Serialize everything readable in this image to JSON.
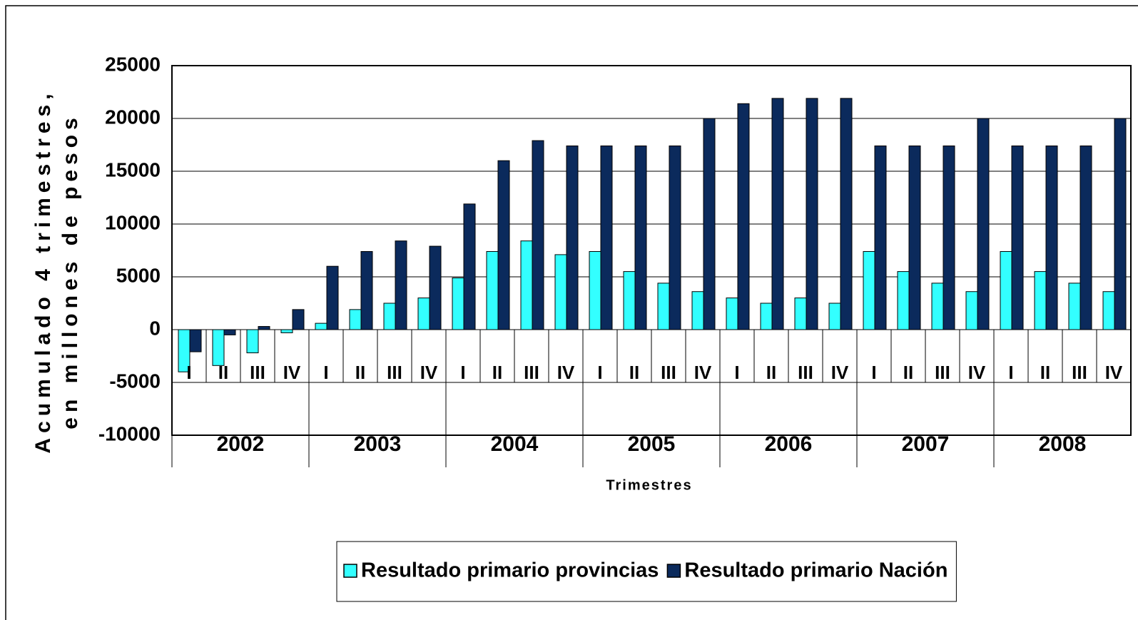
{
  "chart_data": {
    "type": "bar",
    "y_label": [
      "Acumulado 4 trimestres,",
      "en millones de pesos"
    ],
    "x_label": "Trimestres",
    "categories": [
      "I",
      "II",
      "III",
      "IV",
      "I",
      "II",
      "III",
      "IV",
      "I",
      "II",
      "III",
      "IV",
      "I",
      "II",
      "III",
      "IV",
      "I",
      "II",
      "III",
      "IV",
      "I",
      "II",
      "III",
      "IV",
      "I",
      "II",
      "III",
      "IV"
    ],
    "groups": [
      "2002",
      "2003",
      "2004",
      "2005",
      "2006",
      "2007",
      "2008"
    ],
    "series": [
      {
        "name": "Resultado primario provincias",
        "color": "#33ffff",
        "values": [
          -4000,
          -3400,
          -2200,
          -300,
          600,
          1900,
          2500,
          3000,
          4900,
          7400,
          8400,
          7100,
          7400,
          5500,
          4400,
          3600,
          3000,
          2500,
          3000,
          2500,
          7400,
          5500,
          4400,
          3600,
          7400,
          5500,
          4400,
          3600
        ]
      },
      {
        "name": "Resultado primario Nación",
        "color": "#0b2a5c",
        "values": [
          -2100,
          -500,
          300,
          1900,
          6000,
          7400,
          8400,
          7900,
          11900,
          16000,
          17900,
          17400,
          17400,
          17400,
          17400,
          20000,
          21400,
          21900,
          21900,
          21900,
          17400,
          17400,
          17400,
          20000,
          17400,
          17400,
          17400,
          20000
        ]
      }
    ],
    "ylim": [
      -10000,
      25000
    ],
    "yticks": [
      -10000,
      -5000,
      0,
      5000,
      10000,
      15000,
      20000,
      25000
    ],
    "grid": true,
    "legend": "bottom"
  }
}
